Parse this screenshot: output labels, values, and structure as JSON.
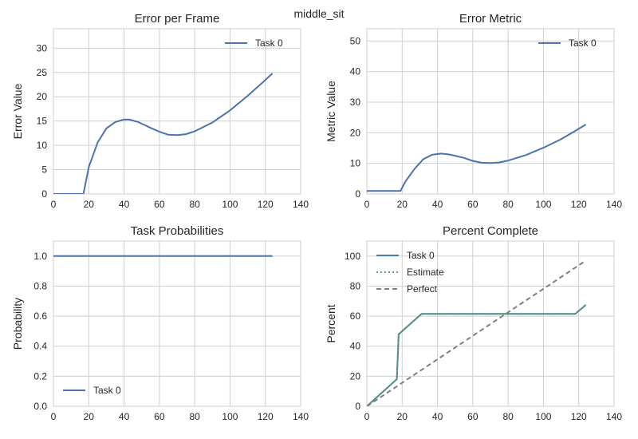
{
  "suptitle": "middle_sit",
  "colors": {
    "task": "#4c72b0",
    "task_pct": "#4c7ea0",
    "estimate": "#55a868",
    "perfect": "#7f7f7f",
    "grid": "#cfcfcf"
  },
  "chart_data": [
    {
      "id": "error",
      "type": "line",
      "title": "Error per Frame",
      "xlabel": "",
      "ylabel": "Error Value",
      "xlim": [
        0,
        140
      ],
      "ylim": [
        0,
        34
      ],
      "xticks": [
        0,
        20,
        40,
        60,
        80,
        100,
        120,
        140
      ],
      "yticks": [
        0,
        5,
        10,
        15,
        20,
        25,
        30
      ],
      "ytick_labels": [
        "0",
        "5",
        "10",
        "15",
        "20",
        "25",
        "30"
      ],
      "grid": true,
      "legend": "top-right",
      "series": [
        {
          "name": "Task 0",
          "style": "solid",
          "color_key": "task",
          "x": [
            0,
            17,
            20,
            25,
            30,
            35,
            40,
            43,
            48,
            55,
            60,
            65,
            70,
            75,
            80,
            90,
            100,
            110,
            118,
            124
          ],
          "y": [
            0,
            0,
            5.5,
            10.6,
            13.5,
            14.8,
            15.3,
            15.3,
            14.8,
            13.6,
            12.8,
            12.2,
            12.1,
            12.3,
            12.9,
            14.7,
            17.2,
            20.2,
            22.8,
            24.8
          ]
        }
      ]
    },
    {
      "id": "metric",
      "type": "line",
      "title": "Error Metric",
      "xlabel": "",
      "ylabel": "Metric Value",
      "xlim": [
        0,
        140
      ],
      "ylim": [
        0,
        54
      ],
      "xticks": [
        0,
        20,
        40,
        60,
        80,
        100,
        120,
        140
      ],
      "yticks": [
        0,
        10,
        20,
        30,
        40,
        50
      ],
      "ytick_labels": [
        "0",
        "10",
        "20",
        "30",
        "40",
        "50"
      ],
      "grid": true,
      "legend": "top-right",
      "series": [
        {
          "name": "Task 0",
          "style": "solid",
          "color_key": "task",
          "x": [
            0,
            19,
            22,
            27,
            32,
            37,
            42,
            47,
            55,
            60,
            65,
            70,
            75,
            80,
            90,
            100,
            110,
            118,
            124
          ],
          "y": [
            1,
            1,
            4.2,
            8.2,
            11.4,
            12.8,
            13.2,
            12.9,
            11.8,
            10.8,
            10.2,
            10.1,
            10.3,
            10.9,
            12.7,
            15.1,
            17.9,
            20.6,
            22.7
          ]
        }
      ]
    },
    {
      "id": "probs",
      "type": "line",
      "title": "Task Probabilities",
      "xlabel": "",
      "ylabel": "Probability",
      "xlim": [
        0,
        140
      ],
      "ylim": [
        0,
        1.1
      ],
      "xticks": [
        0,
        20,
        40,
        60,
        80,
        100,
        120,
        140
      ],
      "yticks": [
        0,
        0.2,
        0.4,
        0.6,
        0.8,
        1.0
      ],
      "ytick_labels": [
        "0.0",
        "0.2",
        "0.4",
        "0.6",
        "0.8",
        "1.0"
      ],
      "grid": true,
      "legend": "bottom-left",
      "series": [
        {
          "name": "Task 0",
          "style": "solid",
          "color_key": "task",
          "x": [
            0,
            124
          ],
          "y": [
            1.0,
            1.0
          ]
        }
      ]
    },
    {
      "id": "pct",
      "type": "line",
      "title": "Percent Complete",
      "xlabel": "",
      "ylabel": "Percent",
      "xlim": [
        0,
        140
      ],
      "ylim": [
        0,
        110
      ],
      "xticks": [
        0,
        20,
        40,
        60,
        80,
        100,
        120,
        140
      ],
      "yticks": [
        0,
        20,
        40,
        60,
        80,
        100
      ],
      "ytick_labels": [
        "0",
        "20",
        "40",
        "60",
        "80",
        "100"
      ],
      "grid": true,
      "legend": "top-left",
      "series": [
        {
          "name": "Task 0",
          "style": "solid",
          "color_key": "task_pct",
          "x": [
            0,
            17,
            18,
            31,
            118,
            124
          ],
          "y": [
            0,
            18,
            48,
            61.5,
            61.5,
            67.5
          ]
        },
        {
          "name": "Estimate",
          "style": "dotted",
          "color_key": "estimate",
          "x": [
            0,
            17,
            18,
            31,
            118,
            124
          ],
          "y": [
            0,
            18,
            48,
            61.5,
            61.5,
            67.5
          ]
        },
        {
          "name": "Perfect",
          "style": "dashed",
          "color_key": "perfect",
          "x": [
            0,
            124
          ],
          "y": [
            0,
            97
          ]
        }
      ]
    }
  ]
}
